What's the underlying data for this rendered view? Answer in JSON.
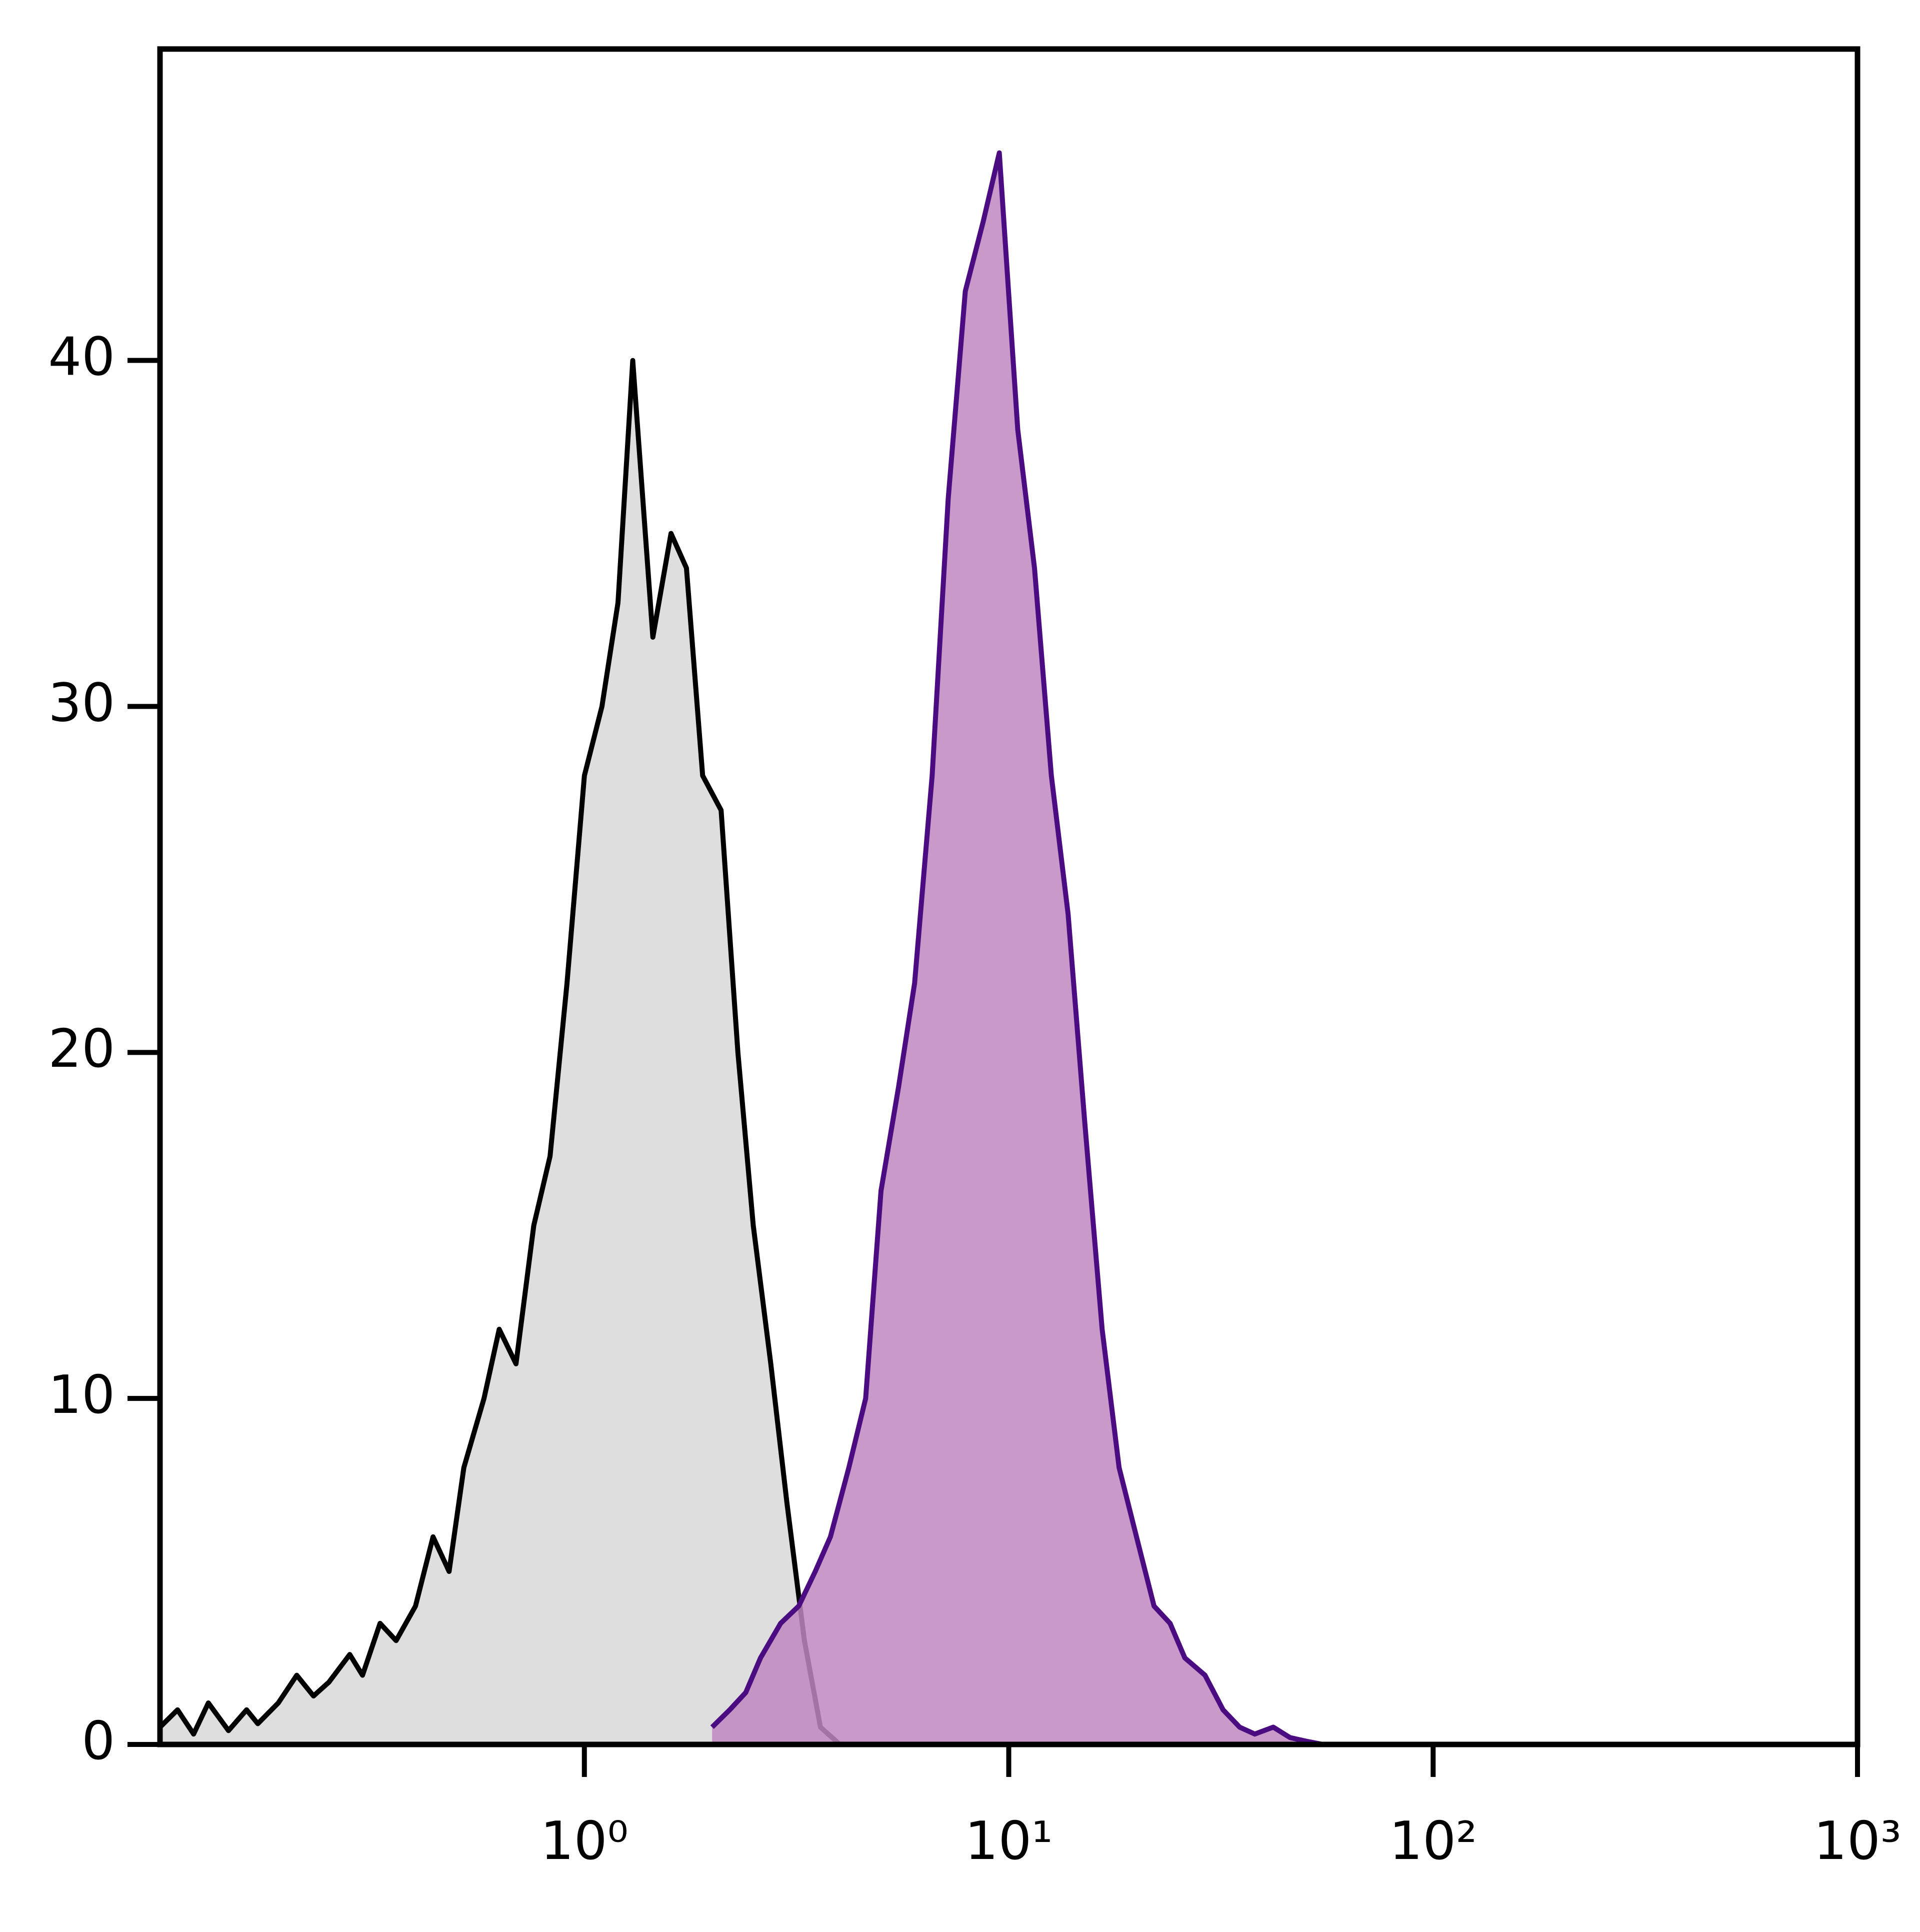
{
  "chart_data": {
    "type": "histogram-overlay",
    "xlim": [
      0.1,
      1000
    ],
    "ylim": [
      0,
      49
    ],
    "xscale": "log",
    "xticks": [
      {
        "value": 1,
        "label": "10⁰"
      },
      {
        "value": 10,
        "label": "10¹"
      },
      {
        "value": 100,
        "label": "10²"
      },
      {
        "value": 1000,
        "label": "10³"
      }
    ],
    "yticks": [
      0,
      10,
      20,
      30,
      40
    ],
    "series": [
      {
        "color": "#000000",
        "fill": "#dedede",
        "x": [
          0.1,
          0.11,
          0.12,
          0.13,
          0.145,
          0.16,
          0.17,
          0.19,
          0.21,
          0.23,
          0.25,
          0.28,
          0.3,
          0.33,
          0.36,
          0.4,
          0.44,
          0.48,
          0.52,
          0.58,
          0.63,
          0.69,
          0.76,
          0.83,
          0.91,
          1.0,
          1.1,
          1.2,
          1.3,
          1.45,
          1.6,
          1.74,
          1.9,
          2.1,
          2.3,
          2.5,
          2.75,
          3.0,
          3.3,
          3.6,
          4.0
        ],
        "values": [
          0.5,
          1,
          0.3,
          1.2,
          0.4,
          1,
          0.6,
          1.2,
          2,
          1.4,
          1.8,
          2.6,
          2,
          3.5,
          3,
          4,
          6,
          5,
          8,
          10,
          12,
          11,
          15,
          17,
          22,
          28,
          30,
          33,
          40,
          32,
          35,
          34,
          28,
          27,
          20,
          15,
          11,
          7,
          3,
          0.5,
          0
        ]
      },
      {
        "color": "#4b0c82",
        "fill": "#c088c0",
        "x": [
          2.0,
          2.2,
          2.4,
          2.6,
          2.9,
          3.2,
          3.5,
          3.8,
          4.2,
          4.6,
          5.0,
          5.5,
          6.0,
          6.6,
          7.2,
          7.9,
          8.7,
          9.5,
          10.5,
          11.5,
          12.6,
          13.8,
          15.1,
          16.6,
          18.2,
          20,
          22,
          24,
          26,
          29,
          32,
          35,
          38,
          42,
          46,
          50,
          55,
          60
        ],
        "values": [
          0.5,
          1,
          1.5,
          2.5,
          3.5,
          4,
          5,
          6,
          8,
          10,
          16,
          19,
          22,
          28,
          36,
          42,
          44,
          46,
          38,
          34,
          28,
          24,
          18,
          12,
          8,
          6,
          4,
          3.5,
          2.5,
          2,
          1,
          0.5,
          0.3,
          0.5,
          0.2,
          0.1,
          0,
          0
        ]
      }
    ]
  }
}
